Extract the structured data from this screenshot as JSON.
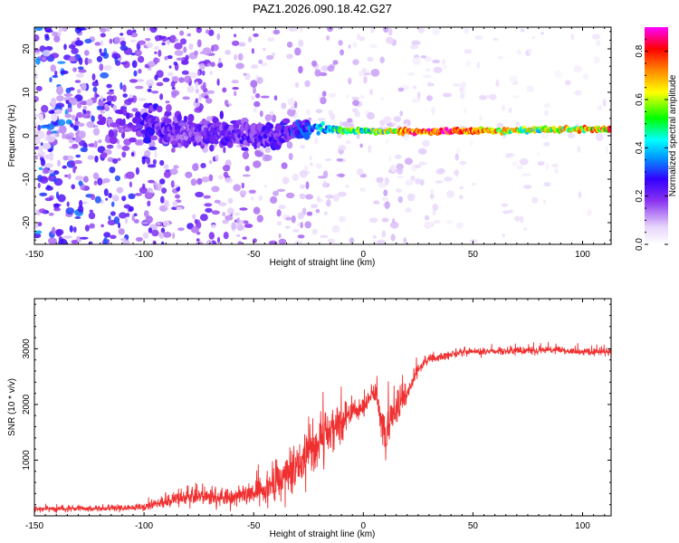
{
  "title": "PAZ1.2026.090.18.42.G27",
  "chart_data": [
    {
      "type": "heatmap",
      "name": "spectrogram",
      "xlabel": "Height of straight line (km)",
      "ylabel": "Frequency (Hz)",
      "xlim": [
        -150,
        113
      ],
      "ylim": [
        -25,
        25
      ],
      "xticks": [
        -150,
        -100,
        -50,
        0,
        50,
        100
      ],
      "yticks": [
        -20,
        -10,
        0,
        10,
        20
      ],
      "colorbar": {
        "label": "Normalized spectral amplitude",
        "range": [
          0,
          0.9
        ],
        "ticks": [
          0.0,
          0.2,
          0.4,
          0.6,
          0.8
        ],
        "colormap": [
          "#ffffff",
          "#e8d8fb",
          "#8a33f0",
          "#3300ff",
          "#0099ff",
          "#00ffff",
          "#00ff00",
          "#ffff00",
          "#ff8800",
          "#ff0000",
          "#ff00ff"
        ]
      },
      "signal_track": {
        "description_points_height_km": [
          -150,
          -100,
          -80,
          -60,
          -40,
          -25,
          -15,
          0,
          10,
          20,
          40,
          60,
          80,
          100,
          113
        ],
        "center_frequency_hz": [
          0,
          3,
          1,
          0,
          0,
          2,
          1.5,
          1,
          1,
          1,
          1,
          1.2,
          1.4,
          1.5,
          1.5
        ],
        "peak_amplitude": [
          0.05,
          0.25,
          0.2,
          0.22,
          0.25,
          0.3,
          0.5,
          0.55,
          0.6,
          0.8,
          0.85,
          0.7,
          0.6,
          0.65,
          0.85
        ],
        "frequency_spread_hz": [
          22,
          8,
          7,
          6,
          5,
          3,
          1.5,
          1,
          1,
          1,
          1,
          1,
          1,
          1,
          1
        ]
      },
      "background_noise": {
        "height_km": [
          -150,
          -100,
          -50,
          0,
          50,
          113
        ],
        "density": [
          0.85,
          0.7,
          0.45,
          0.3,
          0.15,
          0.1
        ],
        "amplitude": [
          0.25,
          0.2,
          0.12,
          0.08,
          0.05,
          0.05
        ]
      }
    },
    {
      "type": "line",
      "name": "snr",
      "xlabel": "Height of straight line (km)",
      "ylabel": "SNR (10 * v/v)",
      "xlim": [
        -150,
        113
      ],
      "ylim": [
        0,
        3900
      ],
      "xticks": [
        -150,
        -100,
        -50,
        0,
        50,
        100
      ],
      "yticks": [
        1000,
        2000,
        3000
      ],
      "line_color": "#f03030",
      "series": [
        {
          "name": "SNR",
          "x": [
            -150,
            -120,
            -100,
            -90,
            -80,
            -70,
            -60,
            -50,
            -40,
            -30,
            -20,
            -10,
            -5,
            0,
            5,
            10,
            15,
            20,
            25,
            30,
            40,
            50,
            60,
            80,
            100,
            113
          ],
          "base": [
            120,
            130,
            160,
            260,
            340,
            330,
            330,
            420,
            600,
            900,
            1400,
            1700,
            1850,
            1950,
            2250,
            1500,
            1900,
            2200,
            2650,
            2800,
            2900,
            2950,
            2950,
            2980,
            2950,
            2950
          ],
          "noise": [
            80,
            80,
            100,
            160,
            220,
            250,
            240,
            350,
            550,
            700,
            800,
            500,
            350,
            250,
            350,
            600,
            450,
            300,
            150,
            130,
            110,
            110,
            110,
            110,
            120,
            120
          ]
        }
      ]
    }
  ]
}
